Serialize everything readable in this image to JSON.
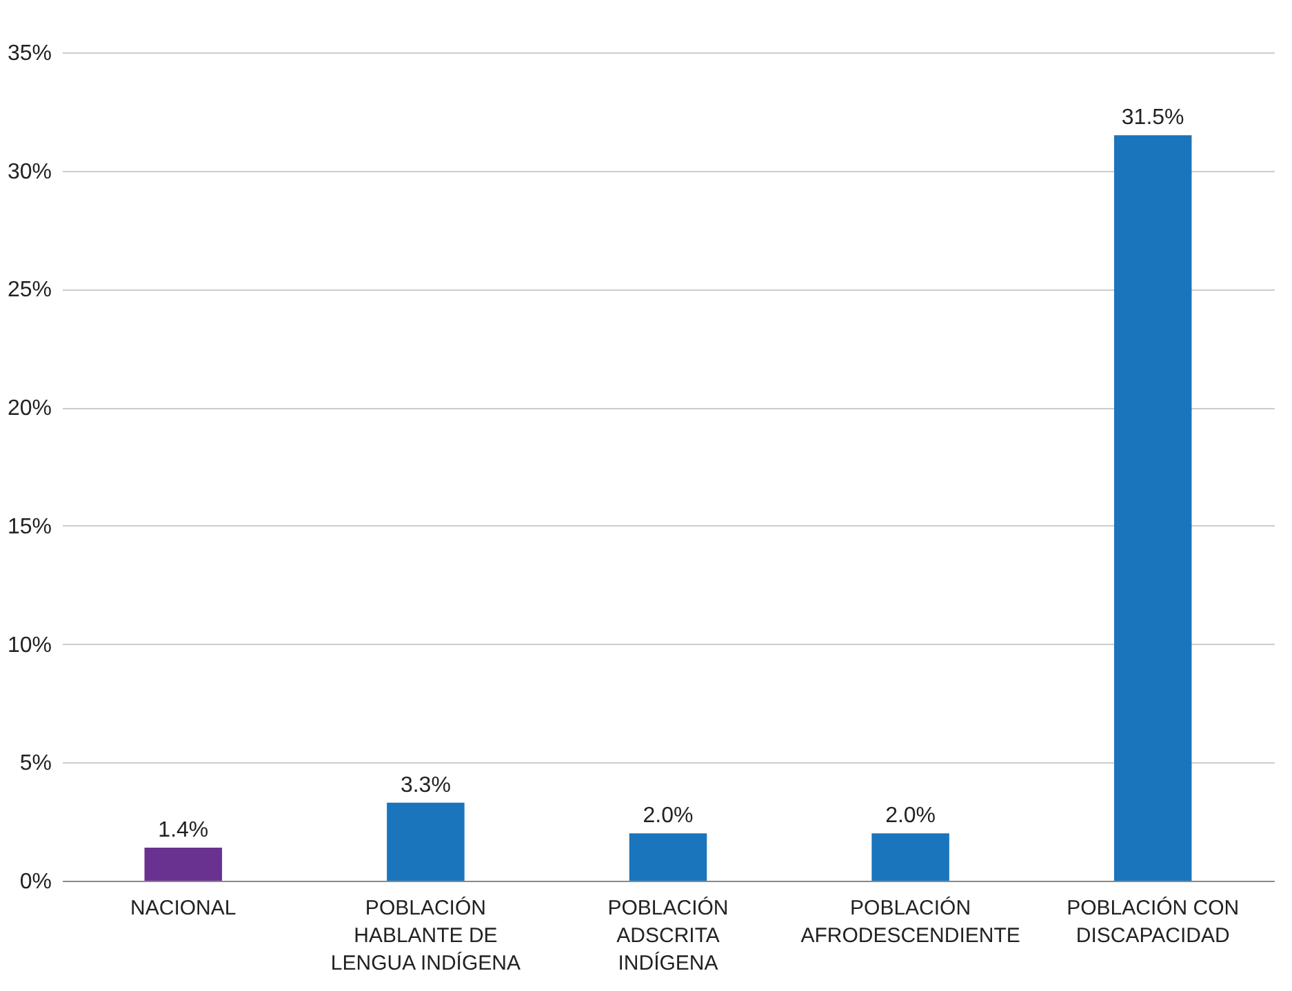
{
  "chart_data": {
    "type": "bar",
    "categories": [
      "NACIONAL",
      "POBLACIÓN HABLANTE DE LENGUA INDÍGENA",
      "POBLACIÓN ADSCRITA INDÍGENA",
      "POBLACIÓN AFRODESCENDIENTE",
      "POBLACIÓN CON DISCAPACIDAD"
    ],
    "values": [
      1.4,
      3.3,
      2.0,
      2.0,
      31.5
    ],
    "colors": [
      "#6a3290",
      "#1a75bc",
      "#1a75bc",
      "#1a75bc",
      "#1a75bc"
    ],
    "value_labels": [
      "1.4%",
      "3.3%",
      "2.0%",
      "2.0%",
      "31.5%"
    ],
    "ylim": [
      0,
      35
    ],
    "yticks": [
      {
        "value": 0,
        "label": "0%"
      },
      {
        "value": 5,
        "label": "5%"
      },
      {
        "value": 10,
        "label": "10%"
      },
      {
        "value": 15,
        "label": "15%"
      },
      {
        "value": 20,
        "label": "20%"
      },
      {
        "value": 25,
        "label": "25%"
      },
      {
        "value": 30,
        "label": "30%"
      },
      {
        "value": 35,
        "label": "35%"
      }
    ],
    "grid": "y"
  }
}
